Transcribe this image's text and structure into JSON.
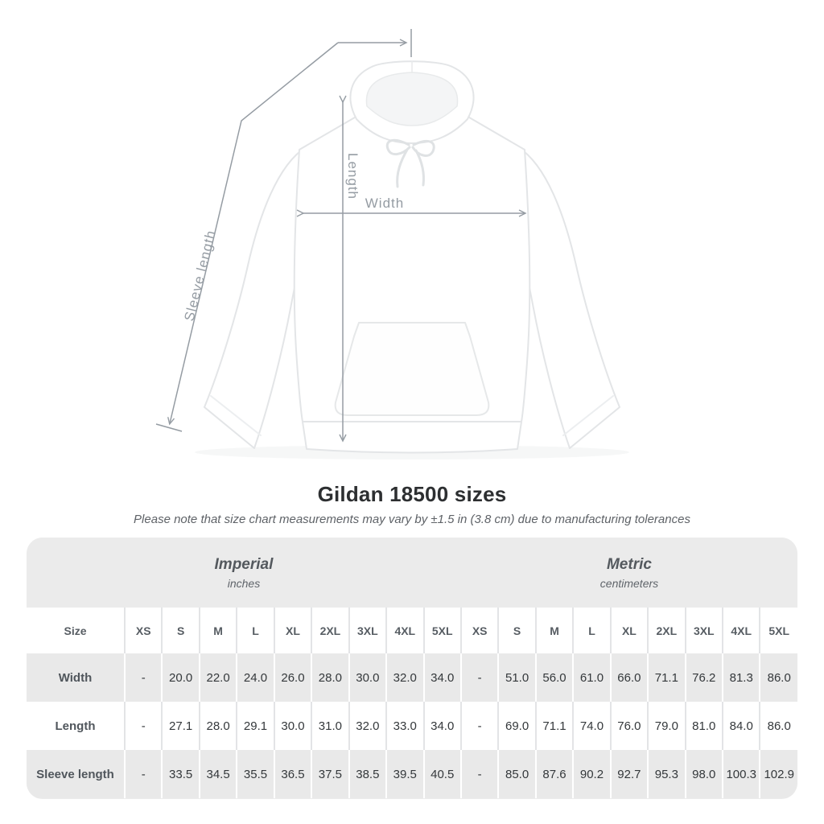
{
  "title": "Gildan 18500 sizes",
  "subtitle": "Please note that size chart measurements may vary by ±1.5 in (3.8 cm) due to manufacturing tolerances",
  "diagram": {
    "width_label": "Width",
    "length_label": "Length",
    "sleeve_label": "Sleeve length",
    "line_color": "#959ca3"
  },
  "chart_data": {
    "type": "table",
    "size_col_header": "Size",
    "groups": [
      {
        "label": "Imperial",
        "sublabel": "inches",
        "sizes": [
          "XS",
          "S",
          "M",
          "L",
          "XL",
          "2XL",
          "3XL",
          "4XL",
          "5XL"
        ]
      },
      {
        "label": "Metric",
        "sublabel": "centimeters",
        "sizes": [
          "XS",
          "S",
          "M",
          "L",
          "XL",
          "2XL",
          "3XL",
          "4XL",
          "5XL"
        ]
      }
    ],
    "rows": [
      {
        "label": "Width",
        "imperial": [
          "-",
          "20.0",
          "22.0",
          "24.0",
          "26.0",
          "28.0",
          "30.0",
          "32.0",
          "34.0"
        ],
        "metric": [
          "-",
          "51.0",
          "56.0",
          "61.0",
          "66.0",
          "71.1",
          "76.2",
          "81.3",
          "86.0"
        ]
      },
      {
        "label": "Length",
        "imperial": [
          "-",
          "27.1",
          "28.0",
          "29.1",
          "30.0",
          "31.0",
          "32.0",
          "33.0",
          "34.0"
        ],
        "metric": [
          "-",
          "69.0",
          "71.1",
          "74.0",
          "76.0",
          "79.0",
          "81.0",
          "84.0",
          "86.0"
        ]
      },
      {
        "label": "Sleeve length",
        "imperial": [
          "-",
          "33.5",
          "34.5",
          "35.5",
          "36.5",
          "37.5",
          "38.5",
          "39.5",
          "40.5"
        ],
        "metric": [
          "-",
          "85.0",
          "87.6",
          "90.2",
          "92.7",
          "95.3",
          "98.0",
          "100.3",
          "102.9"
        ]
      }
    ]
  }
}
